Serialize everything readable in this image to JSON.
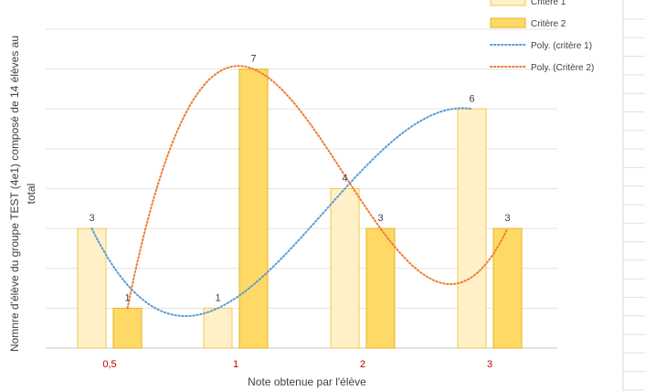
{
  "chart_data": {
    "type": "bar",
    "categories": [
      "0,5",
      "1",
      "2",
      "3"
    ],
    "series": [
      {
        "name": "Critère 1",
        "values": [
          3,
          1,
          4,
          6
        ],
        "color": "#FFF0C8",
        "stroke": "#F2C94C"
      },
      {
        "name": "Critère 2",
        "values": [
          1,
          7,
          3,
          3
        ],
        "color": "#FFD966",
        "stroke": "#E6B422"
      }
    ],
    "trendlines": [
      {
        "name": "Poly. (critère 1)",
        "series": "Critère 1",
        "type": "polynomial",
        "color": "#5B9BD5"
      },
      {
        "name": "Poly. (Critère 2)",
        "series": "Critère 2",
        "type": "polynomial",
        "color": "#ED7D31"
      }
    ],
    "xlabel": "Note obtenue par l'élève",
    "ylabel_lines": [
      "Nomnre d'élève du groupe TEST (4e1) composé de 14 élèves au",
      "total"
    ],
    "ylim": [
      0,
      8
    ],
    "grid": true,
    "legend_position": "top-right",
    "data_labels": true
  }
}
